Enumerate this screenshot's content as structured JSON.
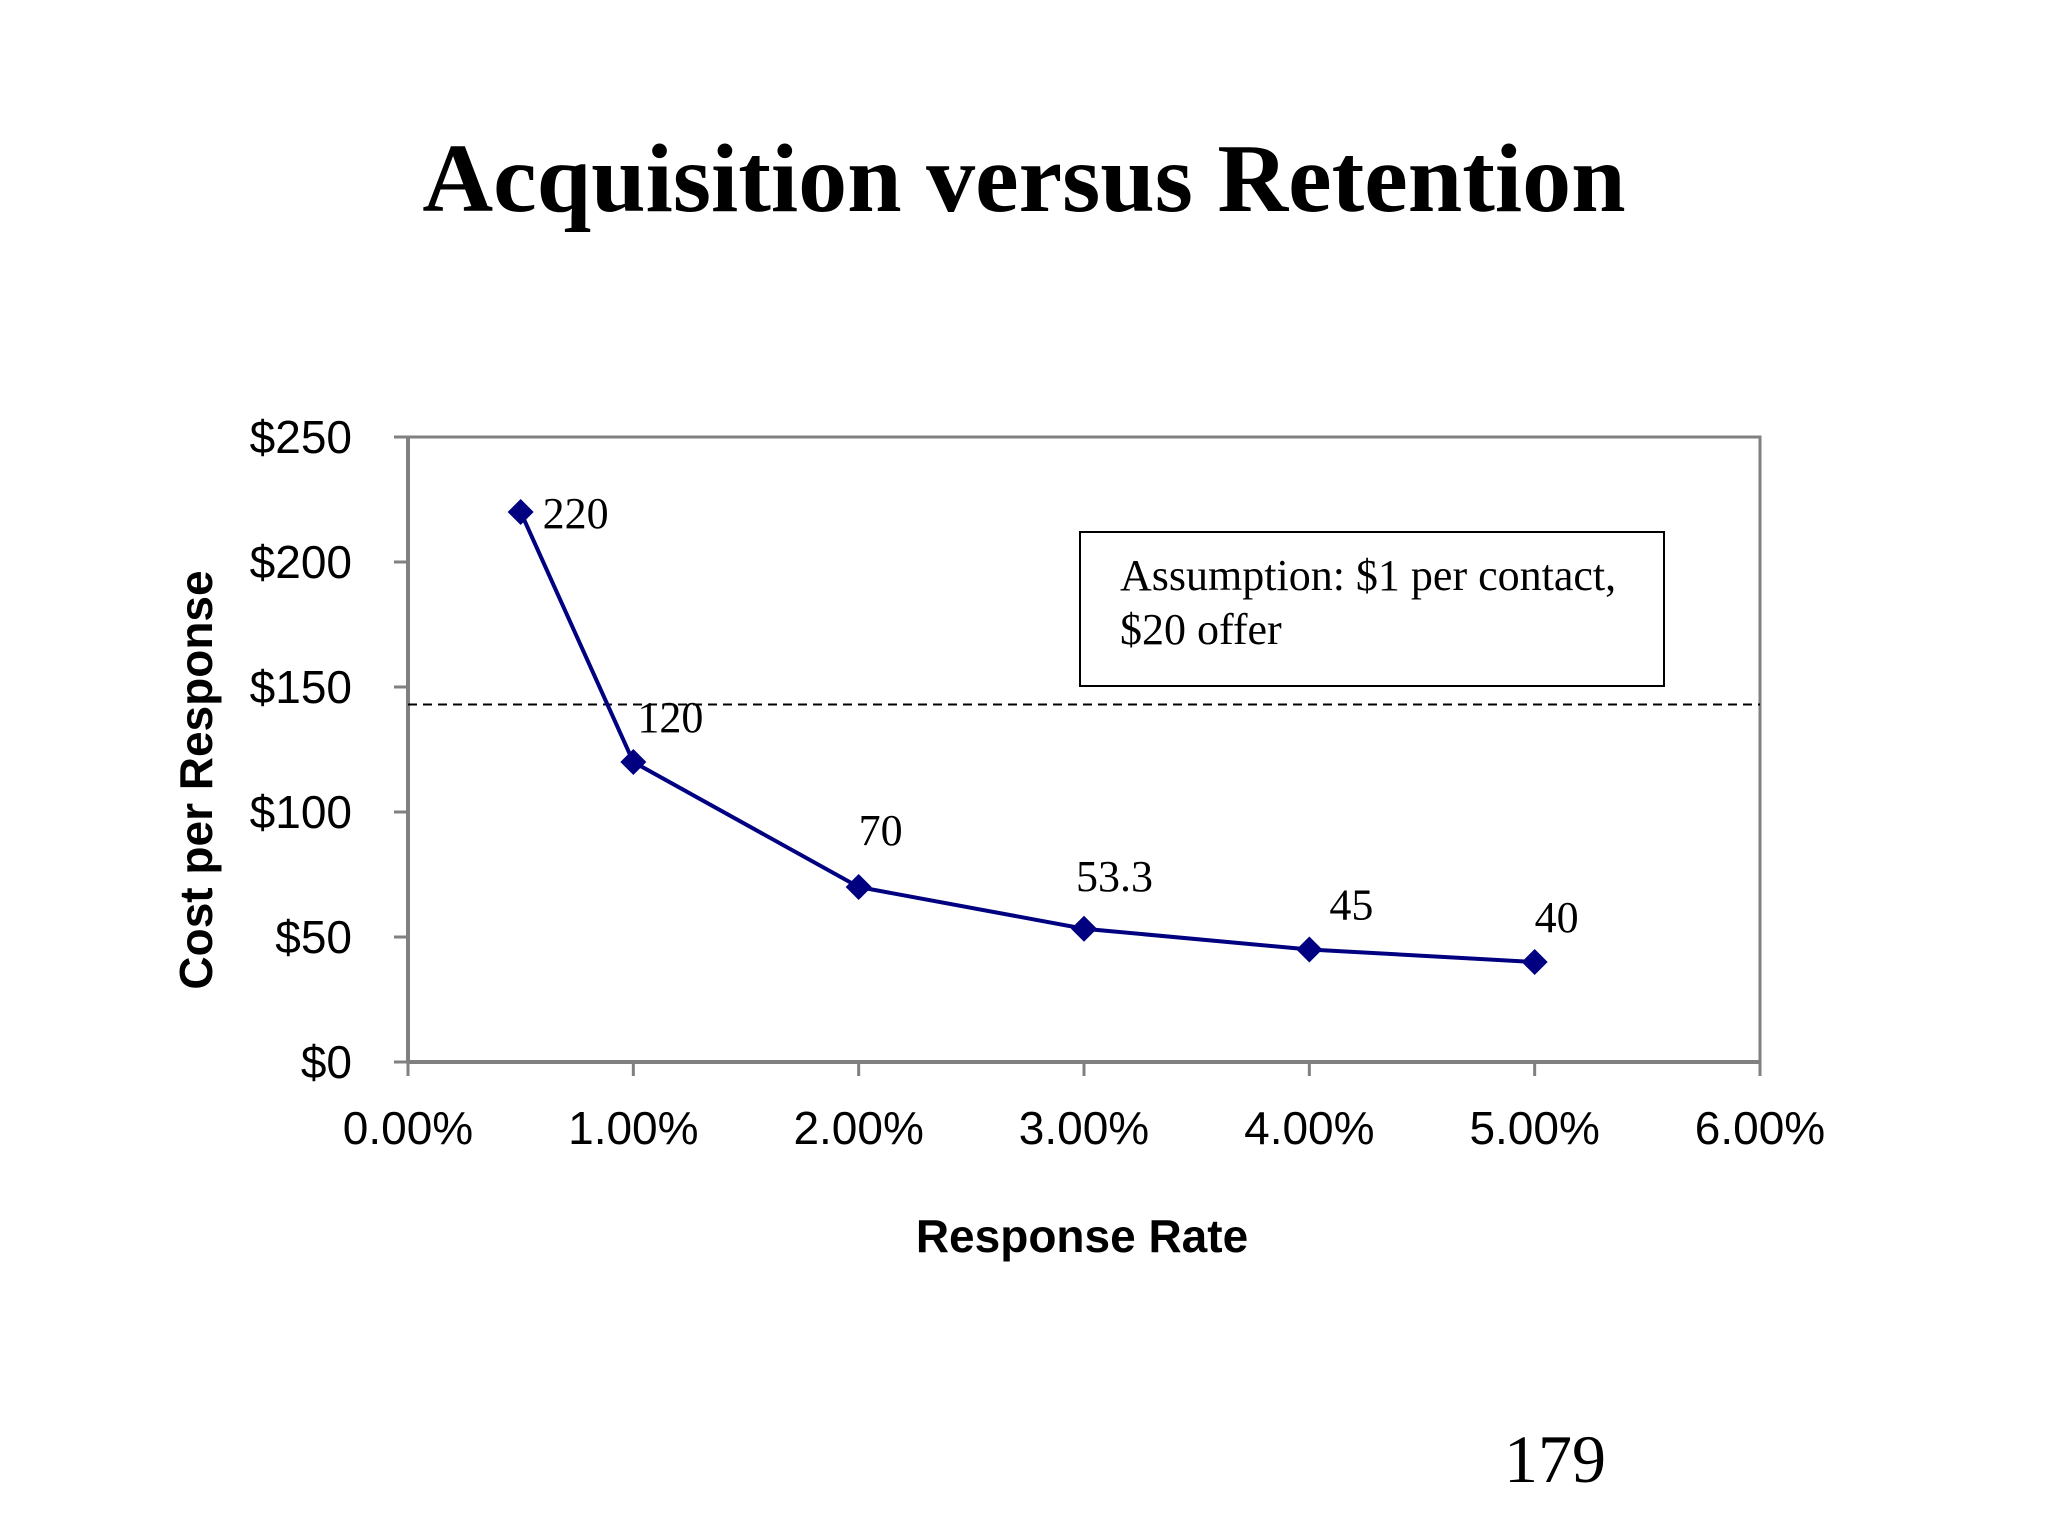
{
  "slide": {
    "title": "Acquisition versus Retention",
    "page_number": "179"
  },
  "chart_data": {
    "type": "line",
    "xlabel": "Response Rate",
    "ylabel": "Cost per Response",
    "xlim": [
      0,
      6
    ],
    "ylim": [
      0,
      250
    ],
    "x_ticks": [
      "0.00%",
      "1.00%",
      "2.00%",
      "3.00%",
      "4.00%",
      "5.00%",
      "6.00%"
    ],
    "y_ticks": [
      "$0",
      "$50",
      "$100",
      "$150",
      "$200",
      "$250"
    ],
    "series": [
      {
        "x": [
          0.5,
          1,
          2,
          3,
          4,
          5
        ],
        "values": [
          220,
          120,
          70,
          53.3,
          45,
          40
        ],
        "data_labels": [
          "220",
          "120",
          "70",
          "53.3",
          "45",
          "40"
        ],
        "color": "#000080",
        "marker": "diamond"
      }
    ],
    "reference_line": {
      "y": 143,
      "style": "dashed",
      "color": "#000000"
    },
    "annotation": {
      "lines": [
        "Assumption: $1 per contact,",
        "$20 offer"
      ],
      "position": "top-right"
    },
    "grid": false,
    "legend": "none"
  }
}
